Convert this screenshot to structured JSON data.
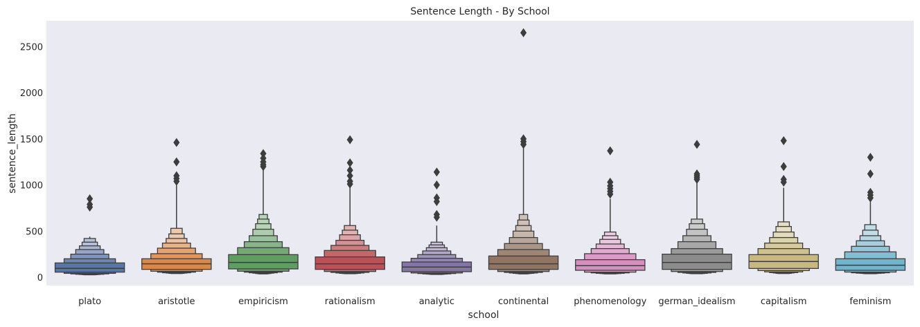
{
  "chart_data": {
    "type": "boxenplot",
    "title": "Sentence Length - By School",
    "xlabel": "school",
    "ylabel": "sentence_length",
    "ylim": [
      -90,
      2780
    ],
    "yticks": [
      0,
      500,
      1000,
      1500,
      2000,
      2500
    ],
    "grid": false,
    "legend": "none",
    "categories": [
      "plato",
      "aristotle",
      "empiricism",
      "rationalism",
      "analytic",
      "continental",
      "phenomenology",
      "german_idealism",
      "capitalism",
      "feminism"
    ],
    "colors": [
      "#5874a8",
      "#d8884a",
      "#5f9d62",
      "#bc5257",
      "#8474a8",
      "#917461",
      "#d88fc0",
      "#8c8c8c",
      "#c8b87e",
      "#72b4cc"
    ],
    "boxen": [
      {
        "levels": [
          [
            55,
            155
          ],
          [
            42,
            200
          ],
          [
            36,
            250
          ],
          [
            32,
            300
          ],
          [
            30,
            340
          ],
          [
            28,
            380
          ],
          [
            26,
            420
          ]
        ],
        "median": 95,
        "whisker_max": 440,
        "outliers": [
          850,
          790,
          760
        ]
      },
      {
        "levels": [
          [
            85,
            200
          ],
          [
            65,
            255
          ],
          [
            55,
            315
          ],
          [
            48,
            370
          ],
          [
            45,
            420
          ],
          [
            42,
            470
          ],
          [
            40,
            530
          ]
        ],
        "median": 145,
        "whisker_max": 1000,
        "outliers": [
          1460,
          1250,
          1100,
          1070,
          1040
        ]
      },
      {
        "levels": [
          [
            90,
            245
          ],
          [
            65,
            320
          ],
          [
            55,
            385
          ],
          [
            48,
            450
          ],
          [
            44,
            520
          ],
          [
            40,
            580
          ],
          [
            38,
            630
          ],
          [
            36,
            680
          ]
        ],
        "median": 160,
        "whisker_max": 1180,
        "outliers": [
          1340,
          1290,
          1250,
          1220,
          1200
        ]
      },
      {
        "levels": [
          [
            85,
            220
          ],
          [
            62,
            290
          ],
          [
            52,
            345
          ],
          [
            46,
            400
          ],
          [
            42,
            460
          ],
          [
            40,
            510
          ],
          [
            38,
            560
          ]
        ],
        "median": 145,
        "whisker_max": 1000,
        "outliers": [
          1490,
          1240,
          1160,
          1100,
          1040,
          1010
        ]
      },
      {
        "levels": [
          [
            60,
            165
          ],
          [
            46,
            205
          ],
          [
            40,
            245
          ],
          [
            36,
            285
          ],
          [
            34,
            320
          ],
          [
            32,
            350
          ],
          [
            30,
            380
          ]
        ],
        "median": 110,
        "whisker_max": 560,
        "outliers": [
          1140,
          1000,
          860,
          820,
          680,
          650
        ]
      },
      {
        "levels": [
          [
            85,
            230
          ],
          [
            62,
            300
          ],
          [
            52,
            365
          ],
          [
            46,
            430
          ],
          [
            42,
            500
          ],
          [
            40,
            560
          ],
          [
            38,
            620
          ],
          [
            36,
            680
          ]
        ],
        "median": 145,
        "whisker_max": 1420,
        "outliers": [
          2650,
          1500,
          1470,
          1440
        ]
      },
      {
        "levels": [
          [
            75,
            190
          ],
          [
            55,
            255
          ],
          [
            47,
            310
          ],
          [
            42,
            360
          ],
          [
            40,
            410
          ],
          [
            38,
            450
          ],
          [
            36,
            490
          ]
        ],
        "median": 125,
        "whisker_max": 850,
        "outliers": [
          1370,
          1030,
          990,
          960,
          930,
          900
        ]
      },
      {
        "levels": [
          [
            85,
            250
          ],
          [
            62,
            310
          ],
          [
            52,
            385
          ],
          [
            46,
            450
          ],
          [
            42,
            520
          ],
          [
            40,
            580
          ],
          [
            38,
            630
          ]
        ],
        "median": 160,
        "whisker_max": 1030,
        "outliers": [
          1440,
          1120,
          1100,
          1080,
          1060
        ]
      },
      {
        "levels": [
          [
            95,
            245
          ],
          [
            72,
            310
          ],
          [
            58,
            370
          ],
          [
            50,
            430
          ],
          [
            46,
            490
          ],
          [
            42,
            550
          ],
          [
            40,
            600
          ]
        ],
        "median": 170,
        "whisker_max": 970,
        "outliers": [
          1480,
          1200,
          1060,
          1030
        ]
      },
      {
        "levels": [
          [
            75,
            200
          ],
          [
            56,
            275
          ],
          [
            48,
            335
          ],
          [
            44,
            395
          ],
          [
            42,
            450
          ],
          [
            40,
            510
          ],
          [
            38,
            570
          ]
        ],
        "median": 130,
        "whisker_max": 840,
        "outliers": [
          1300,
          1120,
          920,
          890,
          860
        ]
      }
    ]
  }
}
